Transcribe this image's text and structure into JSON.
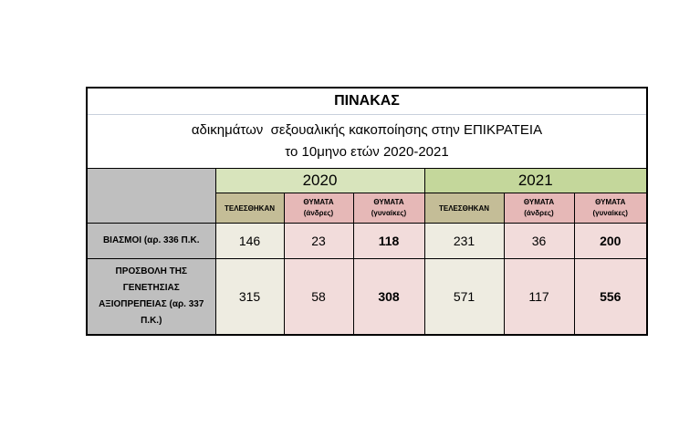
{
  "title": "ΠΙΝΑΚΑΣ",
  "subtitle_line1": "αδικημάτων  σεξουαλικής κακοποίησης στην ΕΠΙΚΡΑΤΕΙΑ",
  "subtitle_line2": "το 10μηνο ετών 2020-2021",
  "years": [
    "2020",
    "2021"
  ],
  "columns": [
    {
      "label": "ΤΕΛΕΣΘΗΚΑΝ",
      "sub": ""
    },
    {
      "label": "ΘΥΜΑΤΑ",
      "sub": "(άνδρες)"
    },
    {
      "label": "ΘΥΜΑΤΑ",
      "sub": "(γυναίκες)"
    }
  ],
  "rows": [
    {
      "label": "ΒΙΑΣΜΟΙ (αρ. 336 Π.Κ.",
      "values": [
        "146",
        "23",
        "118",
        "231",
        "36",
        "200"
      ]
    },
    {
      "label": "ΠΡΟΣΒΟΛΗ ΤΗΣ ΓΕΝΕΤΗΣΙΑΣ ΑΞΙΟΠΡΕΠΕΙΑΣ (αρ. 337 Π.Κ.)",
      "values": [
        "315",
        "58",
        "308",
        "571",
        "117",
        "556"
      ]
    }
  ],
  "colors": {
    "row_header": "#bfbfbf",
    "year_2020": "#d8e4bc",
    "year_2021": "#c4d79b",
    "committed": "#c4bd97",
    "victims": "#e6b8b7",
    "cell_committed": "#eeece1",
    "cell_victims": "#f2dcdb"
  }
}
